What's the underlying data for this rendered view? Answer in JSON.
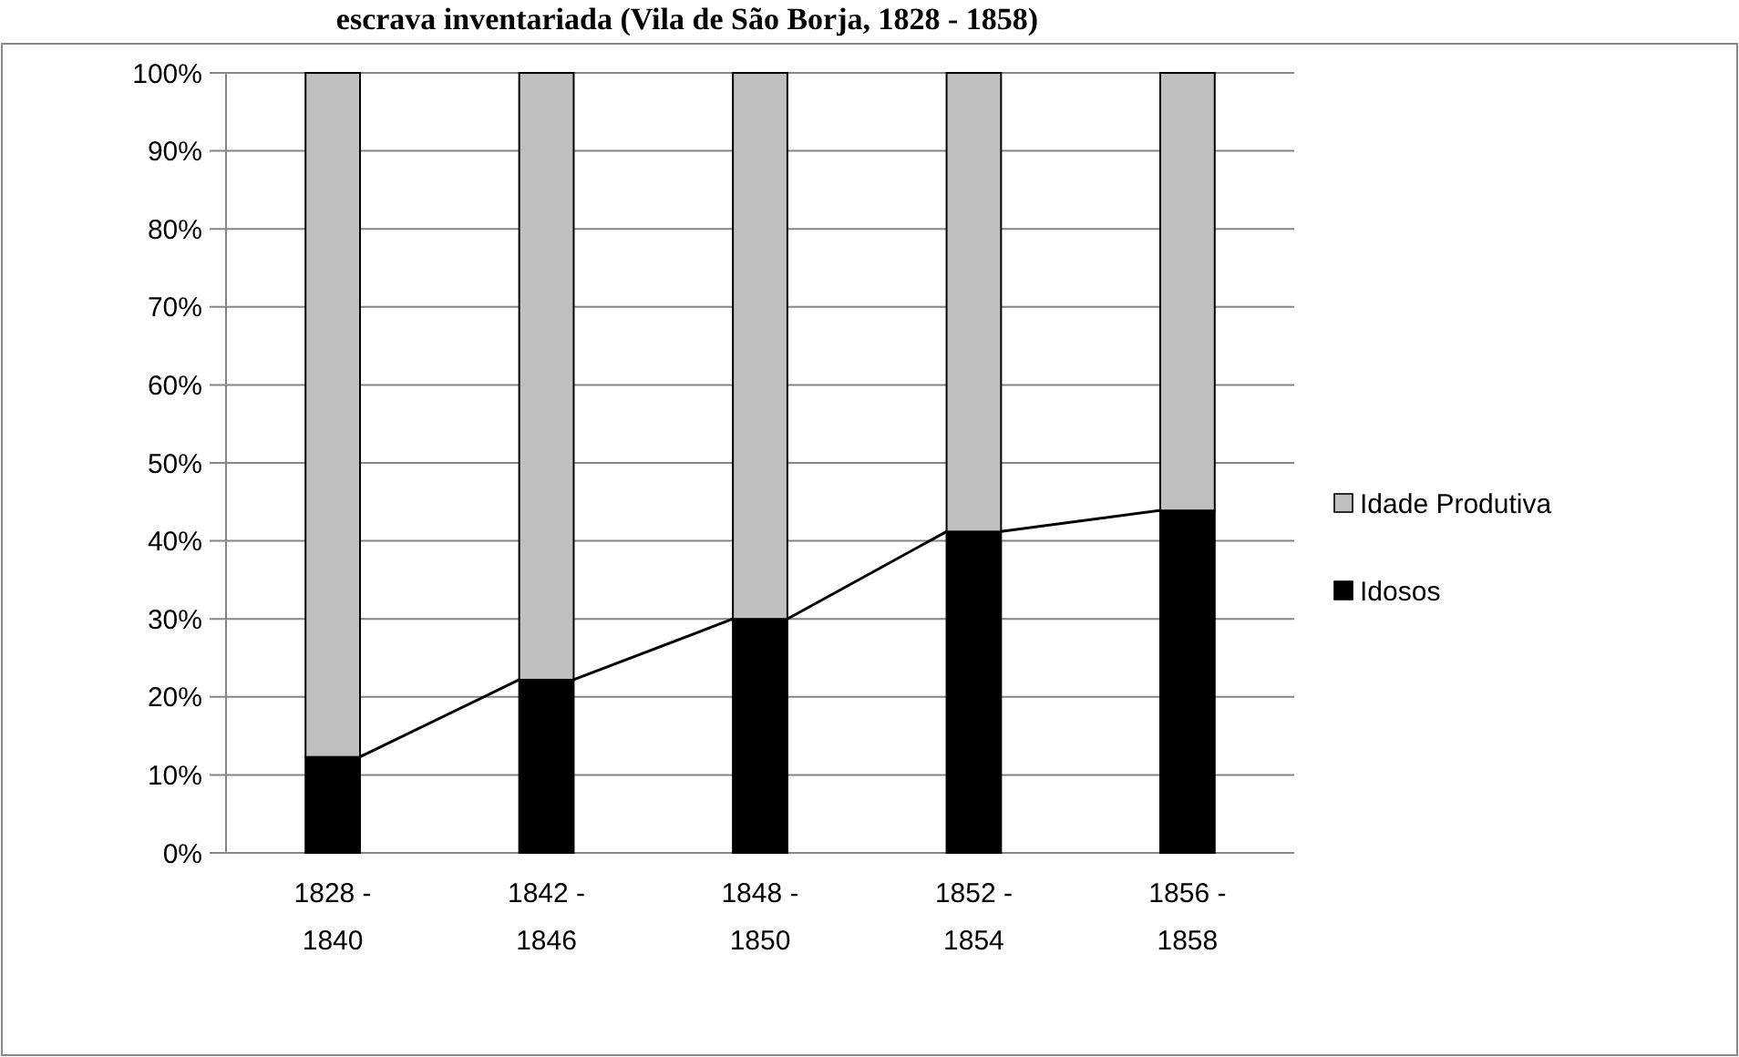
{
  "chart_data": {
    "type": "bar",
    "title": "escrava inventariada (Vila de São Borja, 1828 - 1858)",
    "categories": [
      "1828 - 1840",
      "1842 - 1846",
      "1848 - 1850",
      "1852 - 1854",
      "1856 - 1858"
    ],
    "stacked": true,
    "series": [
      {
        "name": "Idosos",
        "color": "#000000",
        "values": [
          12.3,
          22.2,
          30.0,
          41.2,
          43.9
        ]
      },
      {
        "name": "Idade Produtiva",
        "color": "#c0c0c0",
        "values": [
          87.7,
          77.8,
          70.0,
          58.8,
          56.1
        ]
      }
    ],
    "ylim": [
      0,
      100
    ],
    "yticks": [
      {
        "value": 0,
        "label": "0%"
      },
      {
        "value": 10,
        "label": "10%"
      },
      {
        "value": 20,
        "label": "20%"
      },
      {
        "value": 30,
        "label": "30%"
      },
      {
        "value": 40,
        "label": "40%"
      },
      {
        "value": 50,
        "label": "50%"
      },
      {
        "value": 60,
        "label": "60%"
      },
      {
        "value": 70,
        "label": "70%"
      },
      {
        "value": 80,
        "label": "80%"
      },
      {
        "value": 90,
        "label": "90%"
      },
      {
        "value": 100,
        "label": "100%"
      }
    ],
    "grid": "y",
    "legend": "right"
  }
}
